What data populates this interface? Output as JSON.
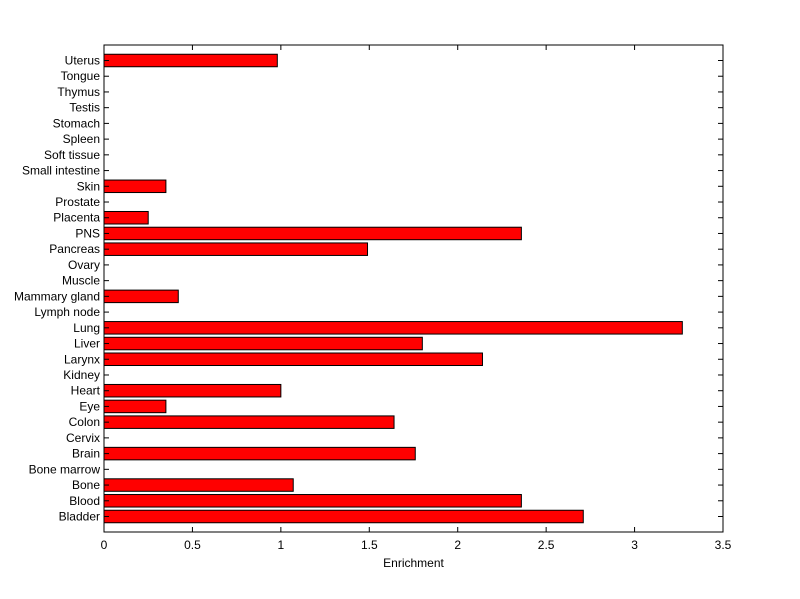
{
  "chart_data": {
    "type": "bar",
    "orientation": "horizontal",
    "title": "",
    "xlabel": "Enrichment",
    "ylabel": "",
    "xlim": [
      0,
      3.5
    ],
    "xticks": [
      0,
      0.5,
      1,
      1.5,
      2,
      2.5,
      3,
      3.5
    ],
    "xtick_labels": [
      "0",
      "0.5",
      "1",
      "1.5",
      "2",
      "2.5",
      "3",
      "3.5"
    ],
    "grid": false,
    "legend": "none",
    "bar_color": "#ff0000",
    "categories": [
      "Bladder",
      "Blood",
      "Bone",
      "Bone marrow",
      "Brain",
      "Cervix",
      "Colon",
      "Eye",
      "Heart",
      "Kidney",
      "Larynx",
      "Liver",
      "Lung",
      "Lymph node",
      "Mammary gland",
      "Muscle",
      "Ovary",
      "Pancreas",
      "PNS",
      "Placenta",
      "Prostate",
      "Skin",
      "Small intestine",
      "Soft tissue",
      "Spleen",
      "Stomach",
      "Testis",
      "Thymus",
      "Tongue",
      "Uterus"
    ],
    "values": [
      2.71,
      2.36,
      1.07,
      0,
      1.76,
      0,
      1.64,
      0.35,
      1.0,
      0,
      2.14,
      1.8,
      3.27,
      0,
      0.42,
      0,
      0,
      1.49,
      2.36,
      0.25,
      0,
      0.35,
      0,
      0,
      0,
      0,
      0,
      0,
      0,
      0.98
    ]
  }
}
